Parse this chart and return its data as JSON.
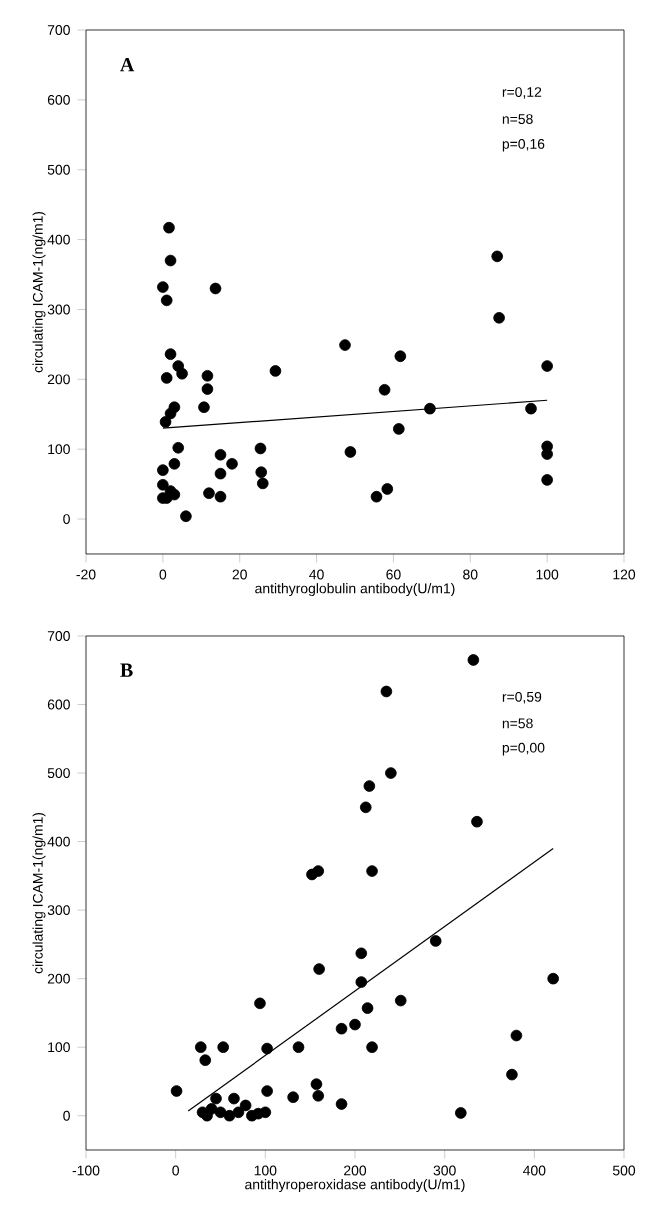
{
  "chart_data": [
    {
      "type": "scatter",
      "xlabel": "antithyroglobulin antibody(U/m1)",
      "ylabel": "circulating ICAM-1(ng/m1)",
      "annotations": [
        "A",
        "r=0,12",
        "n=58",
        "p=0,16"
      ],
      "xlim": [
        -20,
        120
      ],
      "xticks": [
        -20,
        0,
        20,
        40,
        60,
        80,
        100,
        120
      ],
      "ylim": [
        -50,
        700
      ],
      "yticks": [
        0,
        100,
        200,
        300,
        400,
        500,
        600,
        700
      ],
      "grid": false,
      "series": [
        {
          "marker": "circle",
          "color": "#000000",
          "x": [
            0,
            1,
            1.6,
            2,
            2,
            1,
            4,
            5,
            3,
            2,
            0.7,
            4,
            3,
            0,
            0,
            0,
            1,
            2,
            3,
            6,
            11.6,
            11.6,
            10.7,
            13.7,
            12,
            15,
            15,
            15,
            18,
            25.4,
            25.6,
            26,
            29.3,
            47.4,
            48.8,
            55.6,
            58.4,
            57.7,
            61.8,
            61.4,
            69.5,
            87,
            87.5,
            95.8,
            100,
            100,
            100,
            100
          ],
          "values": [
            332,
            313,
            417,
            370,
            236,
            202,
            219,
            208,
            160,
            151,
            139,
            102,
            79,
            70,
            49,
            30,
            30,
            40,
            35,
            4,
            205,
            186,
            160,
            330,
            37,
            92,
            65,
            32,
            79,
            101,
            67,
            51,
            212,
            249,
            96,
            32,
            43,
            185,
            233,
            129,
            158,
            376,
            288,
            158,
            219,
            104,
            93,
            56
          ]
        },
        {
          "type": "line",
          "marker": "none",
          "color": "#000000",
          "x": [
            0,
            100
          ],
          "values": [
            130,
            170
          ]
        }
      ]
    },
    {
      "type": "scatter",
      "xlabel": "antithyroperoxidase antibody(U/m1)",
      "ylabel": "circulating ICAM-1(ng/m1)",
      "annotations": [
        "B",
        "r=0,59",
        "n=58",
        "p=0,00"
      ],
      "xlim": [
        -100,
        500
      ],
      "xticks": [
        -100,
        0,
        100,
        200,
        300,
        400,
        500
      ],
      "ylim": [
        -50,
        700
      ],
      "yticks": [
        0,
        100,
        200,
        300,
        400,
        500,
        600,
        700
      ],
      "grid": false,
      "series": [
        {
          "marker": "circle",
          "color": "#000000",
          "x": [
            332,
            235,
            240,
            216,
            212,
            336,
            152,
            159,
            219,
            290,
            207,
            207,
            160,
            251,
            214,
            200,
            185,
            219,
            94,
            137,
            102,
            28,
            53,
            33,
            1,
            102,
            157,
            159,
            131,
            185,
            318,
            375,
            380,
            421,
            30,
            35,
            40,
            45,
            50,
            60,
            65,
            70,
            78,
            85,
            92,
            100
          ],
          "values": [
            665,
            619,
            500,
            481,
            450,
            429,
            352,
            357,
            357,
            255,
            237,
            195,
            214,
            168,
            157,
            133,
            127,
            100,
            164,
            100,
            98,
            100,
            100,
            81,
            36,
            36,
            46,
            29,
            27,
            17,
            4,
            60,
            117,
            200,
            5,
            0,
            10,
            25,
            5,
            0,
            25,
            5,
            15,
            0,
            3,
            5
          ]
        },
        {
          "type": "line",
          "marker": "none",
          "color": "#000000",
          "x": [
            14,
            421
          ],
          "values": [
            7,
            390
          ]
        }
      ]
    }
  ]
}
